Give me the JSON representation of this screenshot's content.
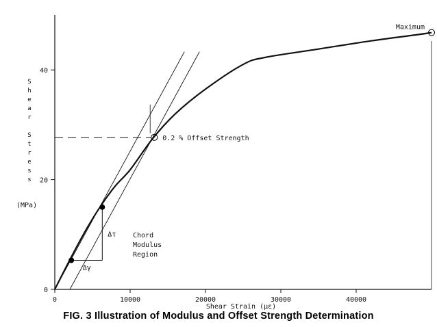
{
  "chart_data": {
    "type": "line",
    "title": "FIG. 3 Illustration of Modulus and Offset Strength Determination",
    "xlabel": "Shear Strain (με)",
    "ylabel_letters": [
      "S",
      "h",
      "e",
      "a",
      "r",
      "",
      "S",
      "t",
      "r",
      "e",
      "s",
      "s"
    ],
    "ylabel_unit": "(MPa)",
    "xlim": [
      0,
      50000
    ],
    "ylim": [
      0,
      50
    ],
    "x_ticks": [
      0,
      10000,
      20000,
      30000,
      40000
    ],
    "x_tick_labels": [
      "0",
      "10000",
      "20000",
      "30000",
      "40000"
    ],
    "y_ticks": [
      0,
      20,
      40
    ],
    "y_tick_labels": [
      "0",
      "20",
      "40"
    ],
    "grid": false,
    "series": [
      {
        "x": [
          0,
          2000,
          4000,
          6000,
          8000,
          10000,
          13000,
          16000,
          20000,
          25000,
          28000,
          35000,
          42000,
          48000,
          50000
        ],
        "y": [
          0,
          5.4,
          10.5,
          15.0,
          18.8,
          21.8,
          27.5,
          32.0,
          36.5,
          41.0,
          42.3,
          43.8,
          45.3,
          46.4,
          46.8
        ]
      }
    ],
    "chord_points": [
      {
        "x": 2200,
        "y": 5.3
      },
      {
        "x": 6300,
        "y": 15.0
      }
    ],
    "chord_line": {
      "x": [
        0,
        17200
      ],
      "y": [
        0,
        43.3
      ]
    },
    "offset_line": {
      "x": [
        2000,
        19200
      ],
      "y": [
        0,
        43.3
      ]
    },
    "offset_point": {
      "x": 13200,
      "y": 27.7
    },
    "max_point": {
      "x": 50000,
      "y": 46.8
    },
    "annotations": {
      "offset_strength": "0.2 % Offset Strength",
      "maximum": "Maximum",
      "chord_1": "Chord",
      "chord_2": "Modulus",
      "chord_3": "Region",
      "delta_tau": "Δτ",
      "delta_gamma": "Δγ"
    }
  }
}
